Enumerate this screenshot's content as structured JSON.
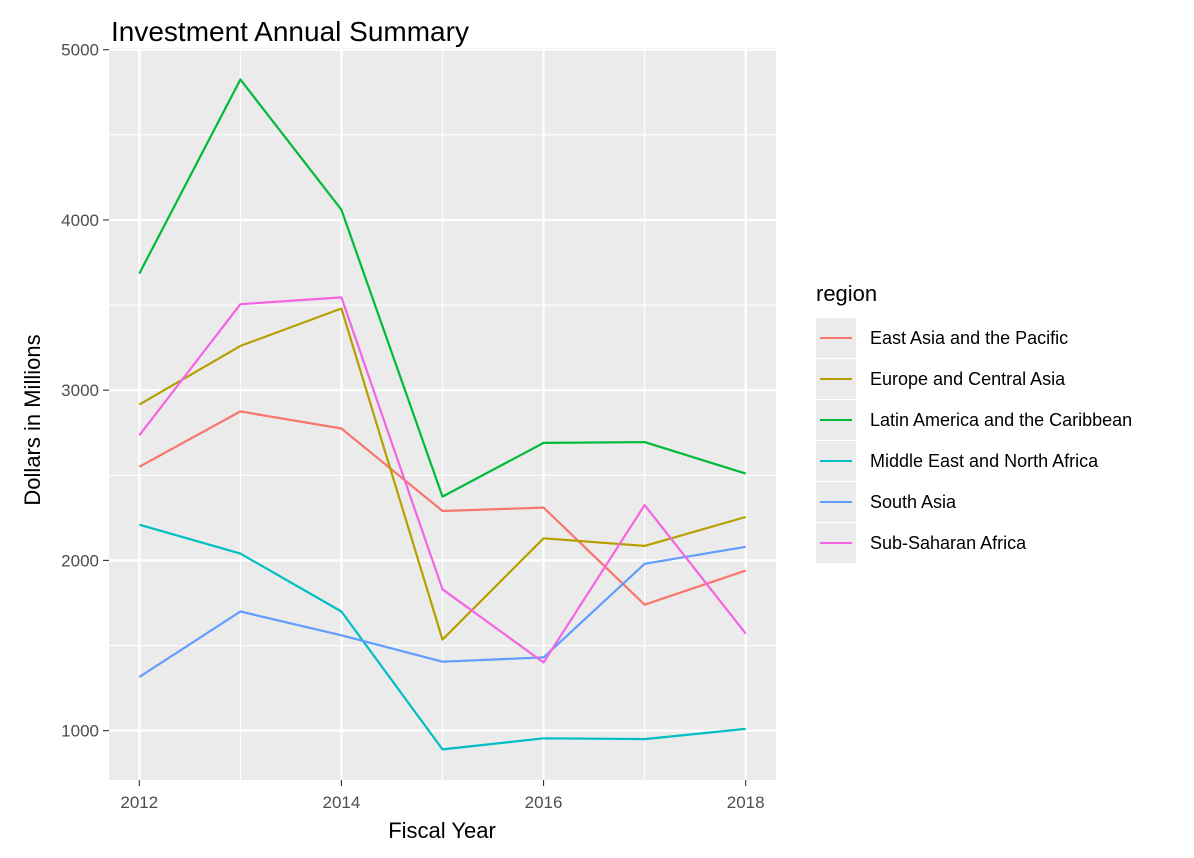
{
  "chart_data": {
    "type": "line",
    "title": "Investment Annual Summary",
    "xlabel": "Fiscal Year",
    "ylabel": "Dollars in Millions",
    "x": [
      2012,
      2013,
      2014,
      2015,
      2016,
      2017,
      2018
    ],
    "xticks": [
      "2012",
      "2014",
      "2016",
      "2018"
    ],
    "yticks": [
      "1000",
      "2000",
      "3000",
      "4000",
      "5000"
    ],
    "xlim": [
      2011.7,
      2018.3
    ],
    "ylim": [
      710,
      5010
    ],
    "grid": true,
    "legend": {
      "title": "region",
      "placement": "right"
    },
    "series": [
      {
        "name": "East Asia and the Pacific",
        "color": "#F8766D",
        "values": [
          2550,
          2875,
          2775,
          2290,
          2310,
          1740,
          1940
        ]
      },
      {
        "name": "Europe and Central Asia",
        "color": "#B79F00",
        "values": [
          2915,
          3260,
          3480,
          1535,
          2130,
          2085,
          2255
        ]
      },
      {
        "name": "Latin America and the Caribbean",
        "color": "#00BA38",
        "values": [
          3685,
          4825,
          4060,
          2375,
          2690,
          2695,
          2510
        ]
      },
      {
        "name": "Middle East and North Africa",
        "color": "#00BFC4",
        "values": [
          2210,
          2040,
          1700,
          890,
          955,
          950,
          1010
        ]
      },
      {
        "name": "South Asia",
        "color": "#619CFF",
        "values": [
          1315,
          1700,
          1560,
          1405,
          1430,
          1980,
          2080
        ]
      },
      {
        "name": "Sub-Saharan Africa",
        "color": "#F564E3",
        "values": [
          2735,
          3505,
          3545,
          1830,
          1400,
          2325,
          1570
        ]
      }
    ]
  }
}
